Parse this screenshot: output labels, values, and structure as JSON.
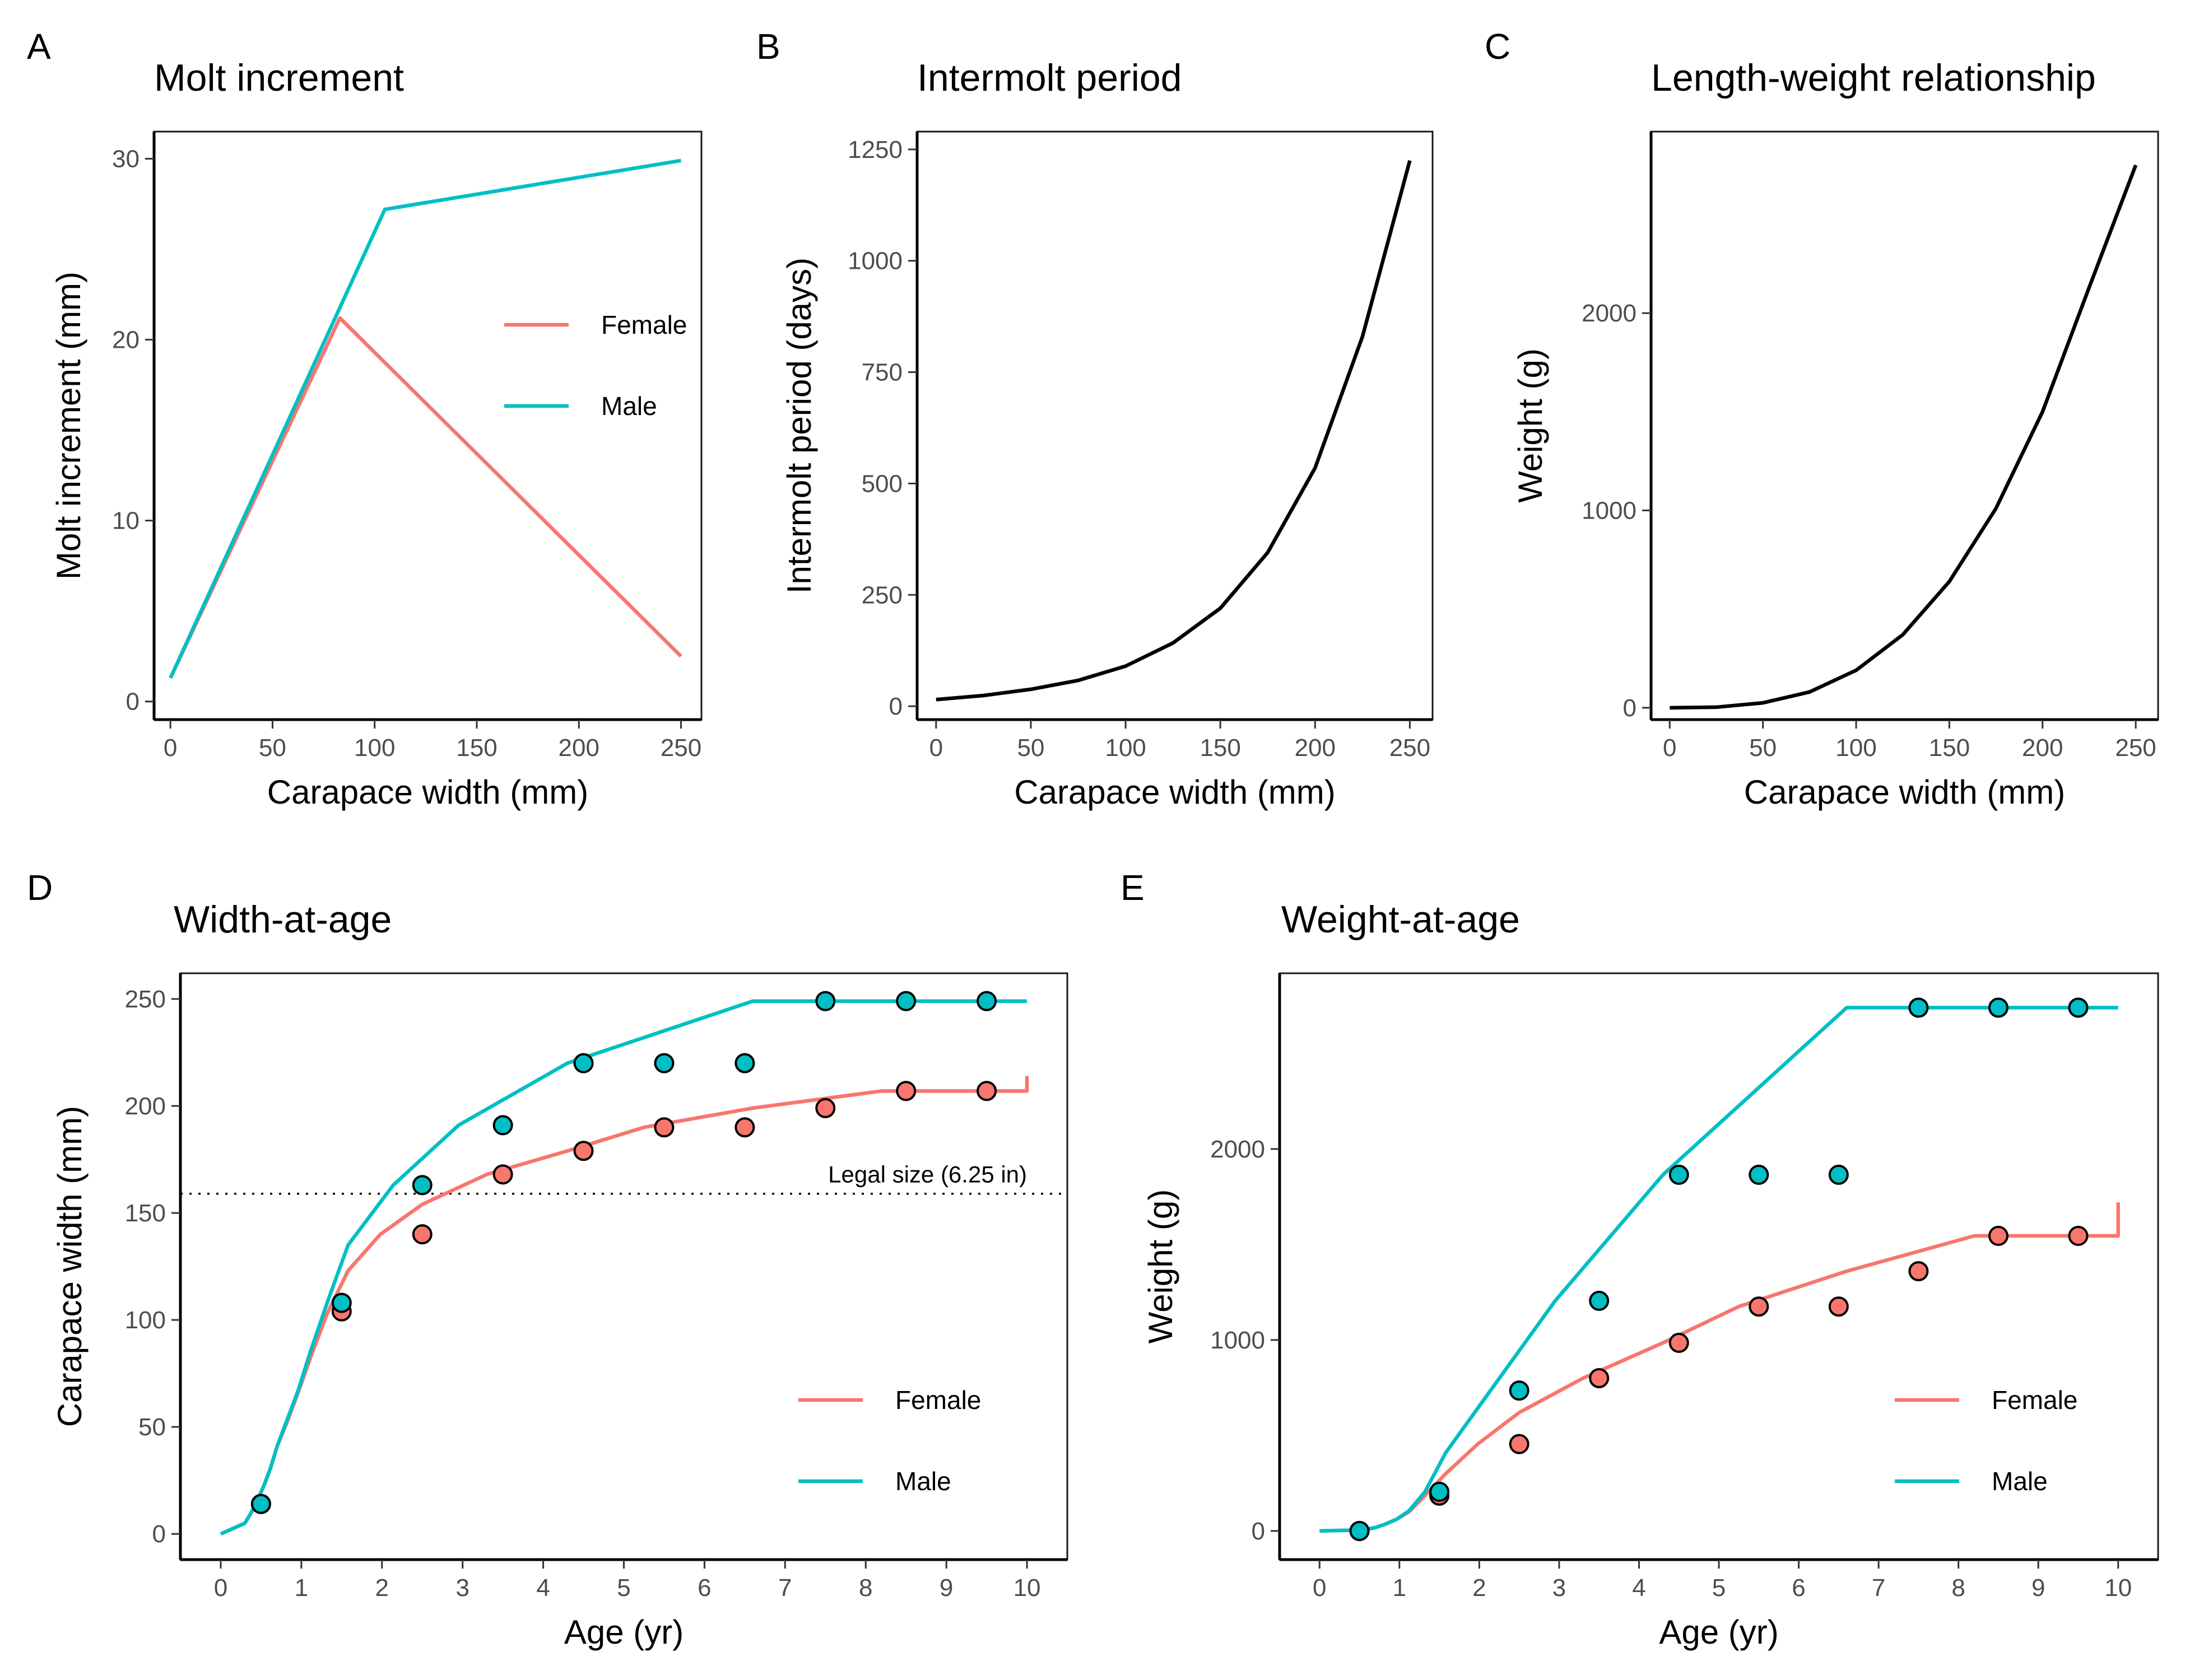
{
  "colors": {
    "female": "#F8766D",
    "male": "#00BFC4",
    "black": "#000000"
  },
  "chart_data": [
    {
      "panel": "A",
      "type": "line",
      "title": "Molt increment",
      "xlabel": "Carapace width (mm)",
      "ylabel": "Molt increment (mm)",
      "xlim": [
        -8,
        260
      ],
      "ylim": [
        -1,
        31.5
      ],
      "xticks": [
        0,
        50,
        100,
        150,
        200,
        250
      ],
      "yticks": [
        0,
        10,
        20,
        30
      ],
      "grid": false,
      "legend": {
        "position": "right",
        "entries": [
          "Female",
          "Male"
        ]
      },
      "series": [
        {
          "name": "Female",
          "color": "female",
          "x": [
            0,
            83,
            250
          ],
          "y": [
            1.3,
            21.2,
            2.5
          ]
        },
        {
          "name": "Male",
          "color": "male",
          "x": [
            0,
            105,
            250
          ],
          "y": [
            1.3,
            27.2,
            29.9
          ]
        }
      ]
    },
    {
      "panel": "B",
      "type": "line",
      "title": "Intermolt period",
      "xlabel": "Carapace width (mm)",
      "ylabel": "Intermolt period (days)",
      "xlim": [
        -10,
        262
      ],
      "ylim": [
        -30,
        1290
      ],
      "xticks": [
        0,
        50,
        100,
        150,
        200,
        250
      ],
      "yticks": [
        0,
        250,
        500,
        750,
        1000,
        1250
      ],
      "grid": false,
      "series": [
        {
          "color": "black",
          "x": [
            0,
            25,
            50,
            75,
            100,
            125,
            150,
            175,
            200,
            225,
            250
          ],
          "y": [
            15,
            24,
            38,
            58,
            90,
            142,
            220,
            345,
            535,
            830,
            1225
          ]
        }
      ]
    },
    {
      "panel": "C",
      "type": "line",
      "title": "Length-weight relationship",
      "xlabel": "Carapace width (mm)",
      "ylabel": "Weight (g)",
      "xlim": [
        -10,
        262
      ],
      "ylim": [
        -60,
        2920
      ],
      "xticks": [
        0,
        50,
        100,
        150,
        200,
        250
      ],
      "yticks": [
        0,
        1000,
        2000
      ],
      "grid": false,
      "series": [
        {
          "color": "black",
          "x": [
            0,
            25,
            50,
            75,
            100,
            125,
            150,
            175,
            200,
            225,
            250
          ],
          "y": [
            0,
            3,
            25,
            80,
            190,
            370,
            640,
            1010,
            1500,
            2130,
            2750
          ]
        }
      ]
    },
    {
      "panel": "D",
      "type": "line",
      "title": "Width-at-age",
      "xlabel": "Age (yr)",
      "ylabel": "Carapace width (mm)",
      "xlim": [
        -0.5,
        10.5
      ],
      "ylim": [
        -12,
        262
      ],
      "xticks": [
        0,
        1,
        2,
        3,
        4,
        5,
        6,
        7,
        8,
        9,
        10
      ],
      "yticks": [
        0,
        50,
        100,
        150,
        200,
        250
      ],
      "grid": false,
      "hline": {
        "y": 159,
        "label": "Legal size (6.25 in)"
      },
      "legend": {
        "position": "bottom-right",
        "entries": [
          "Female",
          "Male"
        ]
      },
      "series": [
        {
          "name": "Female",
          "color": "female",
          "x": [
            0,
            0.3,
            0.3,
            0.38,
            0.38,
            0.46,
            0.46,
            0.54,
            0.54,
            0.62,
            0.62,
            0.7,
            0.7,
            0.82,
            0.82,
            0.96,
            0.96,
            1.12,
            1.12,
            1.32,
            1.32,
            1.58,
            1.58,
            1.98,
            1.98,
            2.5,
            2.5,
            3.3,
            3.3,
            4.3,
            4.3,
            5.25,
            5.25,
            6.6,
            6.6,
            8.2,
            8.2,
            10,
            10
          ],
          "y": [
            0,
            5,
            5,
            10,
            10,
            16,
            16,
            23,
            23,
            31,
            31,
            41,
            41,
            52,
            52,
            66,
            66,
            83,
            83,
            103,
            103,
            123,
            123,
            140,
            140,
            154,
            154,
            168,
            168,
            179,
            179,
            190,
            190,
            199,
            199,
            207,
            207,
            207,
            214
          ]
        },
        {
          "name": "Male",
          "color": "male",
          "x": [
            0,
            0.3,
            0.3,
            0.38,
            0.38,
            0.46,
            0.46,
            0.54,
            0.54,
            0.62,
            0.62,
            0.7,
            0.7,
            0.82,
            0.82,
            0.96,
            0.96,
            1.12,
            1.12,
            1.32,
            1.32,
            1.58,
            1.58,
            2.14,
            2.14,
            2.95,
            2.95,
            4.3,
            4.3,
            6.6,
            6.6,
            10
          ],
          "y": [
            0,
            5,
            5,
            10,
            10,
            16,
            16,
            23,
            23,
            31,
            31,
            41,
            41,
            53,
            53,
            67,
            67,
            86,
            86,
            108,
            108,
            135,
            135,
            163,
            163,
            191,
            191,
            220,
            220,
            249,
            249,
            249
          ]
        }
      ],
      "points": [
        {
          "name": "Female",
          "color": "female",
          "x": [
            0.5,
            1.5,
            2.5,
            3.5,
            4.5,
            5.5,
            6.5,
            7.5,
            8.5,
            9.5
          ],
          "y": [
            14,
            104,
            140,
            168,
            179,
            190,
            190,
            199,
            207,
            207
          ]
        },
        {
          "name": "Male",
          "color": "male",
          "x": [
            0.5,
            1.5,
            2.5,
            3.5,
            4.5,
            5.5,
            6.5,
            7.5,
            8.5,
            9.5
          ],
          "y": [
            14,
            108,
            163,
            191,
            220,
            220,
            220,
            249,
            249,
            249
          ]
        }
      ]
    },
    {
      "panel": "E",
      "type": "line",
      "title": "Weight-at-age",
      "xlabel": "Age (yr)",
      "ylabel": "Weight (g)",
      "xlim": [
        -0.5,
        10.5
      ],
      "ylim": [
        -150,
        2920
      ],
      "xticks": [
        0,
        1,
        2,
        3,
        4,
        5,
        6,
        7,
        8,
        9,
        10
      ],
      "yticks": [
        0,
        1000,
        2000
      ],
      "grid": false,
      "legend": {
        "position": "bottom-right",
        "entries": [
          "Female",
          "Male"
        ]
      },
      "series": [
        {
          "name": "Female",
          "color": "female",
          "x": [
            0,
            0.55,
            0.55,
            0.7,
            0.7,
            0.82,
            0.82,
            0.96,
            0.96,
            1.12,
            1.12,
            1.32,
            1.32,
            1.58,
            1.58,
            1.98,
            1.98,
            2.5,
            2.5,
            3.3,
            3.3,
            4.3,
            4.3,
            5.25,
            5.25,
            6.6,
            6.6,
            8.2,
            8.2,
            10,
            10
          ],
          "y": [
            0,
            5,
            5,
            18,
            18,
            35,
            35,
            60,
            60,
            100,
            100,
            185,
            185,
            300,
            300,
            455,
            455,
            620,
            620,
            800,
            800,
            985,
            985,
            1175,
            1175,
            1360,
            1360,
            1545,
            1545,
            1545,
            1720
          ]
        },
        {
          "name": "Male",
          "color": "male",
          "x": [
            0,
            0.55,
            0.55,
            0.7,
            0.7,
            0.82,
            0.82,
            0.96,
            0.96,
            1.12,
            1.12,
            1.32,
            1.32,
            1.58,
            1.58,
            2.14,
            2.14,
            2.95,
            2.95,
            4.3,
            4.3,
            6.6,
            6.6,
            10
          ],
          "y": [
            0,
            5,
            5,
            18,
            18,
            35,
            35,
            60,
            60,
            105,
            105,
            205,
            205,
            410,
            410,
            735,
            735,
            1205,
            1205,
            1865,
            1865,
            2740,
            2740,
            2740
          ]
        }
      ],
      "points": [
        {
          "name": "Female",
          "color": "female",
          "x": [
            0.5,
            1.5,
            2.5,
            3.5,
            4.5,
            5.5,
            6.5,
            7.5,
            8.5,
            9.5
          ],
          "y": [
            0,
            185,
            455,
            800,
            985,
            1175,
            1175,
            1360,
            1545,
            1545
          ]
        },
        {
          "name": "Male",
          "color": "male",
          "x": [
            0.5,
            1.5,
            2.5,
            3.5,
            4.5,
            5.5,
            6.5,
            7.5,
            8.5,
            9.5
          ],
          "y": [
            0,
            205,
            735,
            1205,
            1865,
            1865,
            1865,
            2740,
            2740,
            2740
          ]
        }
      ]
    }
  ]
}
